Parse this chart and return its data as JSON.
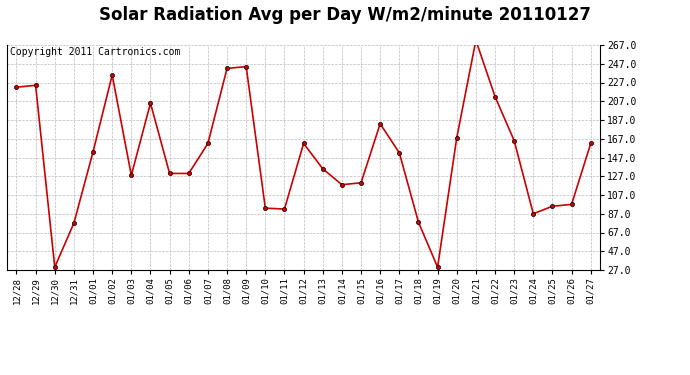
{
  "title": "Solar Radiation Avg per Day W/m2/minute 20110127",
  "copyright": "Copyright 2011 Cartronics.com",
  "labels": [
    "12/28",
    "12/29",
    "12/30",
    "12/31",
    "01/01",
    "01/02",
    "01/03",
    "01/04",
    "01/05",
    "01/06",
    "01/07",
    "01/08",
    "01/09",
    "01/10",
    "01/11",
    "01/12",
    "01/13",
    "01/14",
    "01/15",
    "01/16",
    "01/17",
    "01/18",
    "01/19",
    "01/20",
    "01/21",
    "01/22",
    "01/23",
    "01/24",
    "01/25",
    "01/26",
    "01/27"
  ],
  "values": [
    222,
    224,
    30,
    77,
    153,
    235,
    128,
    205,
    130,
    130,
    162,
    242,
    244,
    93,
    92,
    162,
    135,
    118,
    120,
    183,
    152,
    78,
    30,
    168,
    272,
    212,
    165,
    87,
    95,
    97,
    162
  ],
  "line_color": "#cc0000",
  "marker_edge_color": "#000000",
  "bg_color": "#ffffff",
  "grid_color": "#bbbbbb",
  "ylim_min": 27.0,
  "ylim_max": 267.0,
  "ytick_step": 20,
  "title_fontsize": 12,
  "copyright_fontsize": 7
}
